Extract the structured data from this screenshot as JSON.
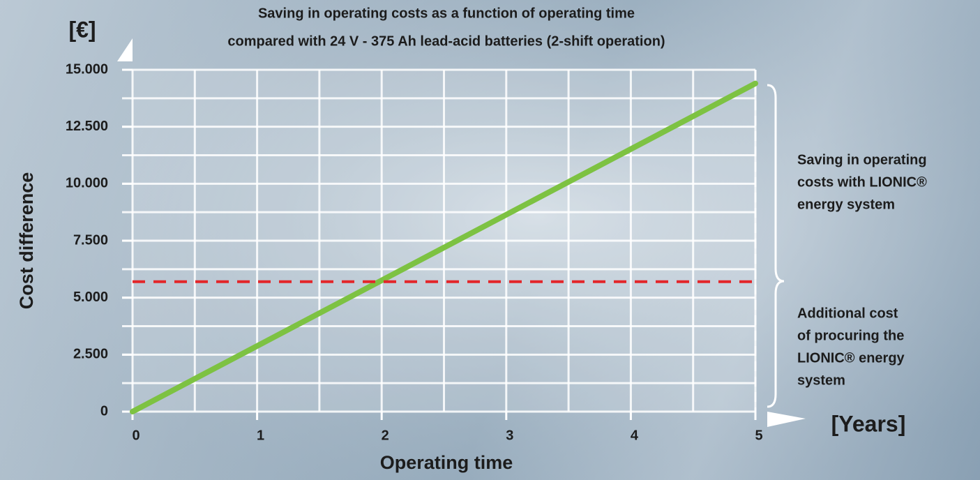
{
  "chart_data": {
    "type": "line",
    "title": "Saving in operating costs as a function of operating time",
    "subtitle": "compared with 24 V - 375 Ah lead-acid batteries (2-shift operation)",
    "x_label": "Operating time",
    "y_label": "Cost difference",
    "x_unit": "[Years]",
    "y_unit": "[€]",
    "xlim": [
      0,
      5
    ],
    "ylim": [
      0,
      15000
    ],
    "xticks": [
      0,
      1,
      2,
      3,
      4,
      5
    ],
    "yticks": [
      {
        "value": 0,
        "label": "0"
      },
      {
        "value": 2500,
        "label": "2.500"
      },
      {
        "value": 5000,
        "label": "5.000"
      },
      {
        "value": 7500,
        "label": "7.500"
      },
      {
        "value": 10000,
        "label": "10.000"
      },
      {
        "value": 12500,
        "label": "12.500"
      },
      {
        "value": 15000,
        "label": "15.000"
      }
    ],
    "xgrid": [
      0,
      0.5,
      1,
      1.5,
      2,
      2.5,
      3,
      3.5,
      4,
      4.5,
      5
    ],
    "ygrid": [
      0,
      1250,
      2500,
      3750,
      5000,
      6250,
      7500,
      8750,
      10000,
      11250,
      12500,
      13750,
      15000
    ],
    "grid": true,
    "series": [
      {
        "color": "#7dc242",
        "dash": false,
        "x": [
          0,
          5
        ],
        "values": [
          0,
          14400
        ]
      },
      {
        "color": "#e3262a",
        "dash": true,
        "x": [
          0,
          5
        ],
        "values": [
          5700,
          5700
        ]
      }
    ],
    "annotations": [
      {
        "lines": [
          "Saving in operating",
          "costs with LIONIC®",
          "energy system"
        ]
      },
      {
        "lines": [
          "Additional cost",
          "of procuring the",
          "LIONIC® energy",
          "system"
        ]
      }
    ]
  }
}
